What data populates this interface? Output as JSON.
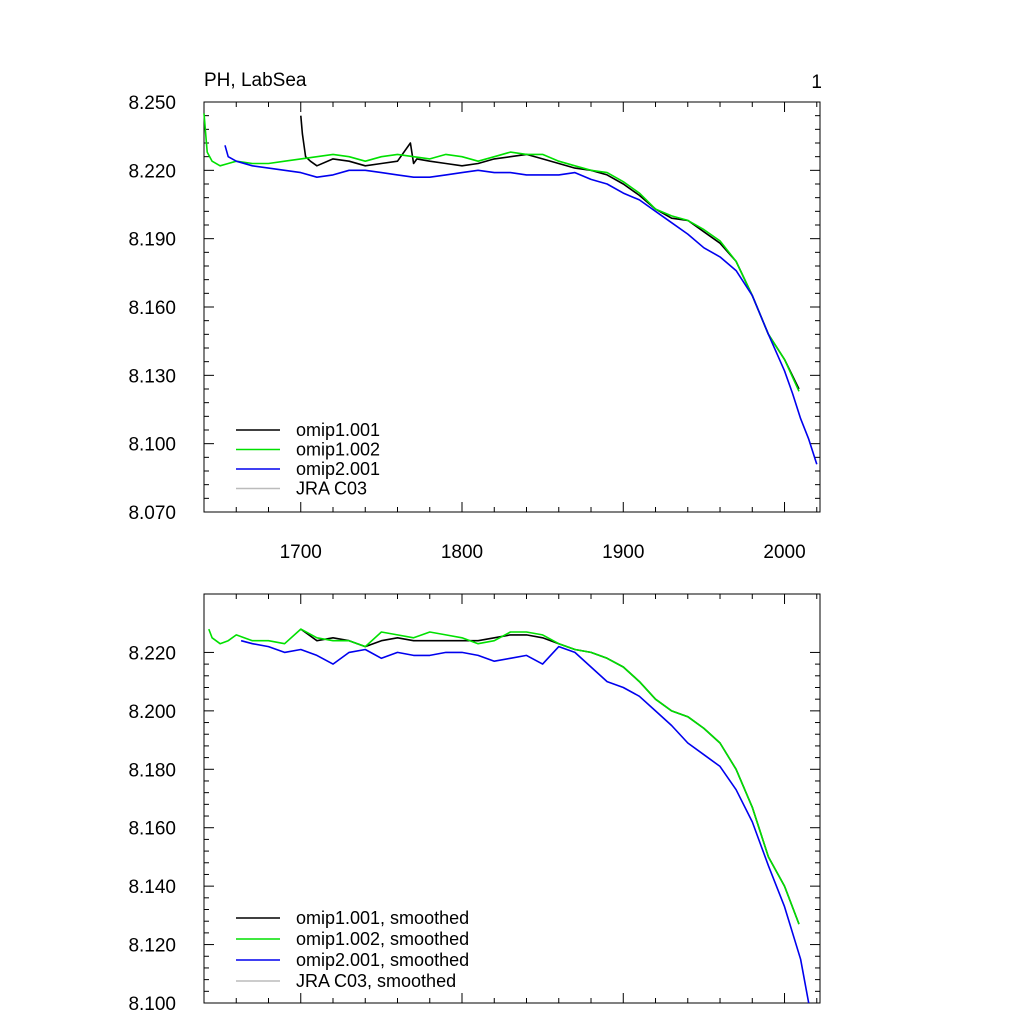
{
  "chart_data": [
    {
      "type": "line",
      "title": "PH, LabSea",
      "corner_label": "1",
      "xlim": [
        1640,
        2022
      ],
      "ylim": [
        8.07,
        8.25
      ],
      "x_ticks": [
        1700,
        1800,
        1900,
        2000
      ],
      "x_tick_labels": [
        "1700",
        "1800",
        "1900",
        "2000"
      ],
      "y_ticks": [
        8.07,
        8.1,
        8.13,
        8.16,
        8.19,
        8.22,
        8.25
      ],
      "y_tick_labels": [
        "8.070",
        "8.100",
        "8.130",
        "8.160",
        "8.190",
        "8.220",
        "8.250"
      ],
      "grid": false,
      "legend_position": "bottom-left",
      "series": [
        {
          "name": "omip1.001",
          "color": "#000000",
          "x": [
            1700,
            1701,
            1703,
            1706,
            1710,
            1720,
            1730,
            1740,
            1750,
            1760,
            1768,
            1770,
            1772,
            1780,
            1790,
            1800,
            1810,
            1820,
            1830,
            1840,
            1850,
            1860,
            1870,
            1880,
            1890,
            1900,
            1910,
            1920,
            1930,
            1940,
            1950,
            1960,
            1970,
            1980,
            1990,
            2000,
            2009
          ],
          "y": [
            8.244,
            8.236,
            8.226,
            8.224,
            8.222,
            8.225,
            8.224,
            8.222,
            8.223,
            8.224,
            8.232,
            8.223,
            8.225,
            8.224,
            8.223,
            8.222,
            8.223,
            8.225,
            8.226,
            8.227,
            8.225,
            8.223,
            8.221,
            8.22,
            8.218,
            8.214,
            8.209,
            8.203,
            8.199,
            8.198,
            8.193,
            8.188,
            8.18,
            8.165,
            8.148,
            8.137,
            8.124
          ]
        },
        {
          "name": "omip1.002",
          "color": "#00e000",
          "x": [
            1640,
            1642,
            1645,
            1650,
            1655,
            1660,
            1670,
            1680,
            1690,
            1700,
            1710,
            1720,
            1730,
            1740,
            1750,
            1760,
            1770,
            1780,
            1790,
            1800,
            1810,
            1820,
            1830,
            1840,
            1850,
            1860,
            1870,
            1880,
            1890,
            1900,
            1910,
            1920,
            1930,
            1940,
            1950,
            1960,
            1970,
            1980,
            1990,
            2000,
            2009
          ],
          "y": [
            8.245,
            8.228,
            8.224,
            8.222,
            8.223,
            8.224,
            8.223,
            8.223,
            8.224,
            8.225,
            8.226,
            8.227,
            8.226,
            8.224,
            8.226,
            8.227,
            8.226,
            8.225,
            8.227,
            8.226,
            8.224,
            8.226,
            8.228,
            8.227,
            8.227,
            8.224,
            8.222,
            8.22,
            8.219,
            8.215,
            8.21,
            8.203,
            8.2,
            8.198,
            8.194,
            8.189,
            8.18,
            8.165,
            8.148,
            8.137,
            8.123
          ]
        },
        {
          "name": "omip2.001",
          "color": "#0000ee",
          "x": [
            1653,
            1655,
            1660,
            1670,
            1680,
            1690,
            1700,
            1710,
            1720,
            1730,
            1740,
            1750,
            1760,
            1770,
            1780,
            1790,
            1800,
            1810,
            1820,
            1830,
            1840,
            1850,
            1860,
            1870,
            1880,
            1890,
            1900,
            1910,
            1920,
            1930,
            1940,
            1950,
            1960,
            1970,
            1980,
            1990,
            2000,
            2005,
            2010,
            2015,
            2020
          ],
          "y": [
            8.231,
            8.226,
            8.224,
            8.222,
            8.221,
            8.22,
            8.219,
            8.217,
            8.218,
            8.22,
            8.22,
            8.219,
            8.218,
            8.217,
            8.217,
            8.218,
            8.219,
            8.22,
            8.219,
            8.219,
            8.218,
            8.218,
            8.218,
            8.219,
            8.216,
            8.214,
            8.21,
            8.207,
            8.202,
            8.197,
            8.192,
            8.186,
            8.182,
            8.176,
            8.165,
            8.148,
            8.132,
            8.122,
            8.111,
            8.102,
            8.091
          ]
        },
        {
          "name": "JRA C03",
          "color": "#bbbbbb",
          "x": [],
          "y": []
        }
      ]
    },
    {
      "type": "line",
      "title": "",
      "xlim": [
        1640,
        2022
      ],
      "ylim": [
        8.1,
        8.24
      ],
      "x_ticks": [
        1700,
        1800,
        1900,
        2000
      ],
      "x_tick_labels": [],
      "y_ticks": [
        8.1,
        8.12,
        8.14,
        8.16,
        8.18,
        8.2,
        8.22
      ],
      "y_tick_labels": [
        "8.100",
        "8.120",
        "8.140",
        "8.160",
        "8.180",
        "8.200",
        "8.220"
      ],
      "grid": false,
      "legend_position": "bottom-left",
      "series": [
        {
          "name": "omip1.001, smoothed",
          "color": "#000000",
          "x": [
            1700,
            1705,
            1710,
            1720,
            1730,
            1740,
            1750,
            1760,
            1770,
            1780,
            1790,
            1800,
            1810,
            1820,
            1830,
            1840,
            1850,
            1860,
            1870,
            1880,
            1890,
            1900,
            1910,
            1920,
            1930,
            1940,
            1950,
            1960,
            1970,
            1980,
            1990,
            2000,
            2009
          ],
          "y": [
            8.228,
            8.226,
            8.224,
            8.225,
            8.224,
            8.222,
            8.224,
            8.225,
            8.224,
            8.224,
            8.224,
            8.224,
            8.224,
            8.225,
            8.226,
            8.226,
            8.225,
            8.223,
            8.221,
            8.22,
            8.218,
            8.215,
            8.21,
            8.204,
            8.2,
            8.198,
            8.194,
            8.189,
            8.18,
            8.167,
            8.15,
            8.14,
            8.127
          ]
        },
        {
          "name": "omip1.002, smoothed",
          "color": "#00e000",
          "x": [
            1643,
            1645,
            1650,
            1655,
            1660,
            1670,
            1680,
            1690,
            1700,
            1710,
            1720,
            1730,
            1740,
            1750,
            1760,
            1770,
            1780,
            1790,
            1800,
            1810,
            1820,
            1830,
            1840,
            1850,
            1860,
            1870,
            1880,
            1890,
            1900,
            1910,
            1920,
            1930,
            1940,
            1950,
            1960,
            1970,
            1980,
            1990,
            2000,
            2009
          ],
          "y": [
            8.228,
            8.225,
            8.223,
            8.224,
            8.226,
            8.224,
            8.224,
            8.223,
            8.228,
            8.225,
            8.224,
            8.224,
            8.222,
            8.227,
            8.226,
            8.225,
            8.227,
            8.226,
            8.225,
            8.223,
            8.224,
            8.227,
            8.227,
            8.226,
            8.223,
            8.221,
            8.22,
            8.218,
            8.215,
            8.21,
            8.204,
            8.2,
            8.198,
            8.194,
            8.189,
            8.18,
            8.167,
            8.15,
            8.14,
            8.127
          ]
        },
        {
          "name": "omip2.001, smoothed",
          "color": "#0000ee",
          "x": [
            1663,
            1670,
            1680,
            1690,
            1700,
            1710,
            1720,
            1730,
            1740,
            1750,
            1760,
            1770,
            1780,
            1790,
            1800,
            1810,
            1820,
            1830,
            1840,
            1850,
            1860,
            1870,
            1880,
            1890,
            1900,
            1910,
            1920,
            1930,
            1940,
            1950,
            1960,
            1970,
            1980,
            1990,
            2000,
            2010,
            2015
          ],
          "y": [
            8.224,
            8.223,
            8.222,
            8.22,
            8.221,
            8.219,
            8.216,
            8.22,
            8.221,
            8.218,
            8.22,
            8.219,
            8.219,
            8.22,
            8.22,
            8.219,
            8.217,
            8.218,
            8.219,
            8.216,
            8.222,
            8.22,
            8.215,
            8.21,
            8.208,
            8.205,
            8.2,
            8.195,
            8.189,
            8.185,
            8.181,
            8.173,
            8.162,
            8.147,
            8.133,
            8.115,
            8.1
          ]
        },
        {
          "name": "JRA C03, smoothed",
          "color": "#bbbbbb",
          "x": [],
          "y": []
        }
      ]
    }
  ]
}
